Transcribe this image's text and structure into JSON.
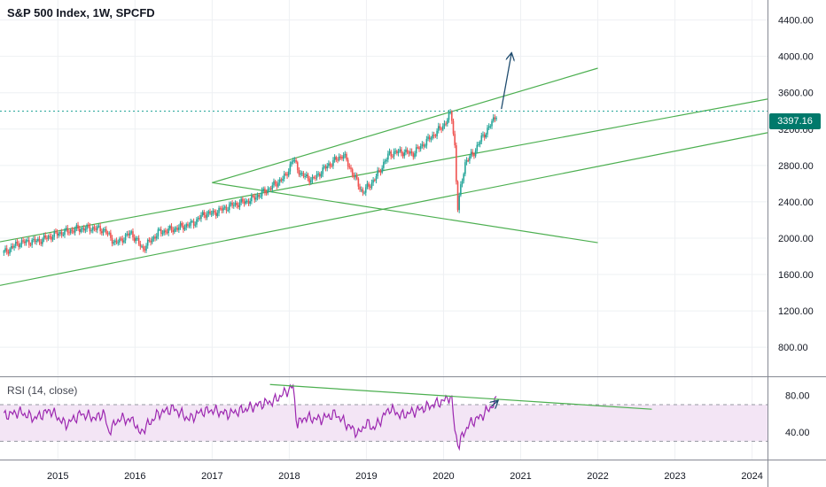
{
  "header": {
    "title": "S&P 500 Index, 1W, SPCFD"
  },
  "indicator": {
    "label": "RSI (14, close)"
  },
  "price_tag": {
    "value": "3397.16",
    "color": "#00796b"
  },
  "colors": {
    "up": "#26a69a",
    "down": "#ef5350",
    "trend": "#4caf50",
    "rsi": "#9c27b0",
    "rsi_band": "#f3e5f5",
    "arrow": "#1e4b6e"
  },
  "chart_data": [
    {
      "type": "candlestick",
      "title": "S&P 500 Index, 1W, SPCFD",
      "xlabel": "",
      "ylabel": "",
      "x_ticks": [
        "2015",
        "2016",
        "2017",
        "2018",
        "2019",
        "2020",
        "2021",
        "2022",
        "2023",
        "2024"
      ],
      "y_ticks": [
        "800.00",
        "1200.00",
        "1600.00",
        "2000.00",
        "2400.00",
        "2800.00",
        "3200.00",
        "3600.00",
        "4000.00",
        "4400.00"
      ],
      "ylim": [
        480,
        4620
      ],
      "xlim": [
        2014.25,
        2024.2
      ],
      "grid": true,
      "last_price": 3397.16,
      "series": [
        {
          "x": [
            2014.3,
            2014.5,
            2014.75,
            2015.0,
            2015.25,
            2015.45,
            2015.6,
            2015.75,
            2015.95,
            2016.1,
            2016.3,
            2016.5,
            2016.75,
            2016.9,
            2017.0,
            2017.25,
            2017.5,
            2017.75,
            2017.95,
            2018.05,
            2018.15,
            2018.3,
            2018.5,
            2018.7,
            2018.8,
            2018.95,
            2019.1,
            2019.3,
            2019.45,
            2019.6,
            2019.8,
            2020.0,
            2020.1,
            2020.15,
            2020.18,
            2020.22,
            2020.28,
            2020.4,
            2020.5,
            2020.6,
            2020.7
          ],
          "values": [
            1840,
            1950,
            1970,
            2050,
            2100,
            2110,
            2090,
            1940,
            2060,
            1880,
            2060,
            2100,
            2160,
            2270,
            2270,
            2360,
            2420,
            2550,
            2680,
            2870,
            2700,
            2640,
            2800,
            2920,
            2750,
            2500,
            2640,
            2930,
            2950,
            2930,
            3080,
            3240,
            3380,
            2980,
            2300,
            2540,
            2830,
            2950,
            3110,
            3230,
            3390
          ]
        }
      ],
      "trendlines": [
        {
          "from": [
            2014.25,
            1480
          ],
          "to": [
            2024.2,
            3160
          ]
        },
        {
          "from": [
            2014.25,
            1960
          ],
          "to": [
            2024.2,
            3530
          ]
        },
        {
          "from": [
            2017.0,
            2610
          ],
          "to": [
            2022.0,
            3870
          ]
        },
        {
          "from": [
            2017.0,
            2610
          ],
          "to": [
            2022.0,
            1950
          ]
        }
      ],
      "horizontal_line": 3397.16,
      "projection_arrow": {
        "from": [
          2020.75,
          3420
        ],
        "to": [
          2020.88,
          4030
        ]
      }
    },
    {
      "type": "line",
      "title": "RSI (14, close)",
      "x_ticks": [
        "2015",
        "2016",
        "2017",
        "2018",
        "2019",
        "2020",
        "2021",
        "2022",
        "2023",
        "2024"
      ],
      "y_ticks": [
        "40.00",
        "80.00"
      ],
      "ylim": [
        10,
        100
      ],
      "band": [
        30,
        70
      ],
      "series": [
        {
          "name": "RSI",
          "x": [
            2014.3,
            2014.5,
            2014.7,
            2014.9,
            2015.1,
            2015.3,
            2015.5,
            2015.6,
            2015.65,
            2015.8,
            2016.0,
            2016.05,
            2016.1,
            2016.3,
            2016.5,
            2016.7,
            2016.85,
            2017.0,
            2017.2,
            2017.4,
            2017.6,
            2017.8,
            2018.05,
            2018.1,
            2018.2,
            2018.4,
            2018.6,
            2018.75,
            2018.9,
            2019.0,
            2019.1,
            2019.3,
            2019.45,
            2019.6,
            2019.8,
            2020.0,
            2020.1,
            2020.15,
            2020.2,
            2020.25,
            2020.35,
            2020.5,
            2020.6,
            2020.7
          ],
          "values": [
            58,
            62,
            55,
            64,
            48,
            60,
            55,
            62,
            40,
            55,
            52,
            38,
            42,
            60,
            66,
            54,
            62,
            64,
            60,
            64,
            70,
            74,
            90,
            48,
            56,
            54,
            60,
            48,
            38,
            50,
            44,
            66,
            58,
            62,
            68,
            74,
            80,
            40,
            24,
            38,
            50,
            58,
            66,
            76
          ]
        }
      ],
      "trendlines": [
        {
          "from": [
            2017.75,
            92
          ],
          "to": [
            2022.7,
            65
          ]
        }
      ],
      "projection_arrow": {
        "from": [
          2020.62,
          68
        ],
        "to": [
          2020.7,
          74
        ]
      }
    }
  ]
}
